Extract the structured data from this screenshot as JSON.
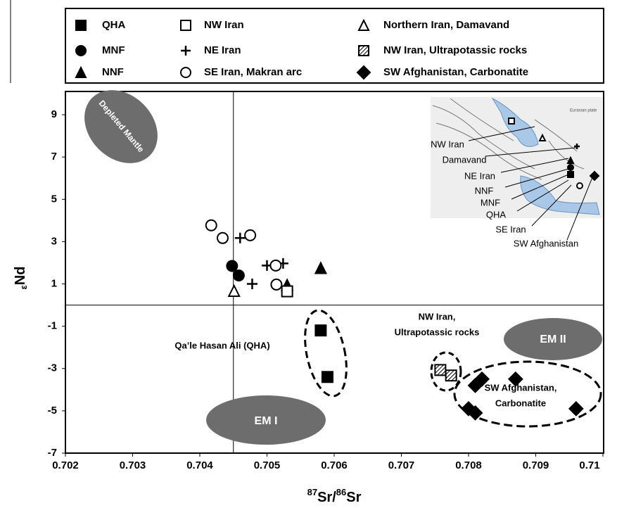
{
  "chart_data": {
    "type": "scatter",
    "xlabel": [
      "87",
      "Sr/",
      "86",
      "Sr"
    ],
    "ylabel": [
      "ε",
      "Nd"
    ],
    "xlim": [
      0.702,
      0.71
    ],
    "ylim": [
      -7,
      10.1
    ],
    "xticks": [
      0.702,
      0.703,
      0.704,
      0.705,
      0.706,
      0.707,
      0.708,
      0.709,
      0.71
    ],
    "yticks": [
      -7,
      -5,
      -3,
      -1,
      1,
      3,
      5,
      7,
      9
    ],
    "grid": false,
    "reference_lines": {
      "x": 0.7045,
      "y": 0
    },
    "series": [
      {
        "name": "QHA",
        "marker": "square",
        "color": "#000000",
        "x": [
          0.7058,
          0.7059
        ],
        "values": [
          -1.2,
          -3.4
        ]
      },
      {
        "name": "MNF",
        "marker": "circle",
        "color": "#000000",
        "x": [
          0.70448,
          0.70458
        ],
        "values": [
          1.85,
          1.4
        ]
      },
      {
        "name": "NNF",
        "marker": "triangle",
        "color": "#000000",
        "x": [
          0.7058,
          0.7053
        ],
        "values": [
          1.75,
          0.95
        ]
      },
      {
        "name": "NW Iran",
        "marker": "square-open",
        "color": "#000000",
        "x": [
          0.7053
        ],
        "values": [
          0.65
        ]
      },
      {
        "name": "NE Iran",
        "marker": "plus",
        "color": "#000000",
        "x": [
          0.7046,
          0.705,
          0.70524,
          0.70478
        ],
        "values": [
          3.17,
          1.87,
          1.97,
          1.0
        ]
      },
      {
        "name": "SE Iran, Makran arc",
        "marker": "circle-open",
        "color": "#000000",
        "x": [
          0.70417,
          0.70434,
          0.70475,
          0.70513,
          0.70514
        ],
        "values": [
          3.77,
          3.17,
          3.3,
          1.87,
          0.97
        ]
      },
      {
        "name": "Northern Iran, Damavand",
        "marker": "triangle-open",
        "color": "#000000",
        "x": [
          0.70451
        ],
        "values": [
          0.67
        ]
      },
      {
        "name": "NW Iran, Ultrapotassic rocks",
        "marker": "square-hatched",
        "color": "#000000",
        "x": [
          0.70758,
          0.70774
        ],
        "values": [
          -3.07,
          -3.33
        ]
      },
      {
        "name": "SW Afghanistan, Carbonatite",
        "marker": "diamond",
        "color": "#000000",
        "x": [
          0.7082,
          0.7081,
          0.7087,
          0.708,
          0.7081,
          0.7096
        ],
        "values": [
          -3.5,
          -3.8,
          -3.5,
          -4.9,
          -5.1,
          -4.9
        ]
      }
    ],
    "annotations": [
      {
        "lines": [
          "Depleted Mantle"
        ]
      },
      {
        "lines": [
          "EM I"
        ]
      },
      {
        "lines": [
          "EM  II"
        ]
      },
      {
        "lines": [
          "Qa’le Hasan Ali (QHA)"
        ]
      },
      {
        "lines": [
          "NW Iran,",
          "Ultrapotassic rocks"
        ]
      },
      {
        "lines": [
          "SW Afghanistan,",
          "Carbonatite"
        ]
      }
    ],
    "inset_labels": [
      "NW Iran",
      "Damavand",
      "NE Iran",
      "NNF",
      "MNF",
      "QHA",
      "SE Iran",
      "SW Afghanistan"
    ]
  }
}
